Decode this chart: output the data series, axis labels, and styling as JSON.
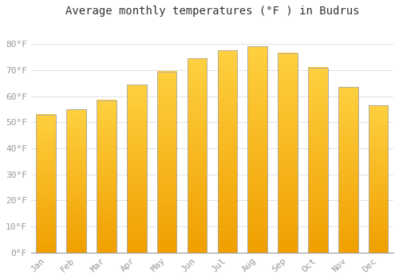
{
  "title": "Average monthly temperatures (°F ) in Budrus",
  "months": [
    "Jan",
    "Feb",
    "Mar",
    "Apr",
    "May",
    "Jun",
    "Jul",
    "Aug",
    "Sep",
    "Oct",
    "Nov",
    "Dec"
  ],
  "values": [
    53,
    55,
    58.5,
    64.5,
    69.5,
    74.5,
    77.5,
    79,
    76.5,
    71,
    63.5,
    56.5
  ],
  "bar_color_top": "#FFD040",
  "bar_color_bottom": "#F0A000",
  "bar_edge_color": "#AAAAAA",
  "background_color": "#FFFFFF",
  "grid_color": "#DDDDDD",
  "ylim": [
    0,
    88
  ],
  "yticks": [
    0,
    10,
    20,
    30,
    40,
    50,
    60,
    70,
    80
  ],
  "title_fontsize": 10,
  "tick_fontsize": 8,
  "tick_color": "#999999",
  "font_family": "monospace",
  "bar_width": 0.65
}
